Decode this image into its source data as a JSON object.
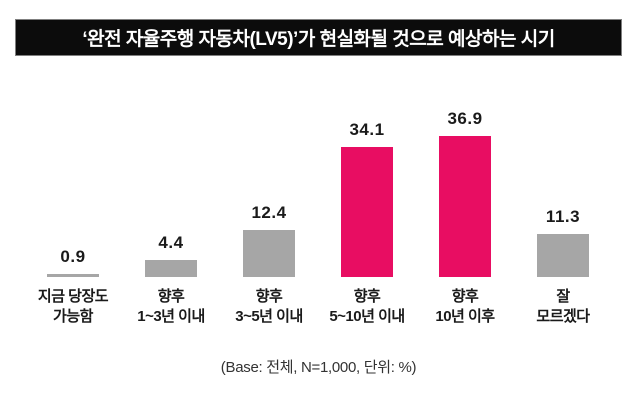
{
  "title": "‘완전 자율주행 자동차(LV5)’가 현실화될 것으로 예상하는 시기",
  "footer": "(Base: 전체, N=1,000, 단위: %)",
  "colors": {
    "highlight_bar": "#e80d62",
    "default_bar": "#a6a6a6",
    "title_background": "#0c0c0c",
    "title_text": "#ffffff",
    "label_text": "#1a1a1a"
  },
  "chart_data": {
    "type": "bar",
    "title": "‘완전 자율주행 자동차(LV5)’가 현실화될 것으로 예상하는 시기",
    "categories": [
      [
        "지금 당장도",
        "가능함"
      ],
      [
        "향후",
        "1~3년 이내"
      ],
      [
        "향후",
        "3~5년 이내"
      ],
      [
        "향후",
        "5~10년 이내"
      ],
      [
        "향후",
        "10년 이후"
      ],
      [
        "잘",
        "모르겠다"
      ]
    ],
    "values": [
      0.9,
      4.4,
      12.4,
      34.1,
      36.9,
      11.3
    ],
    "value_labels": [
      "0.9",
      "4.4",
      "12.4",
      "34.1",
      "36.9",
      "11.3"
    ],
    "highlighted": [
      false,
      false,
      false,
      true,
      true,
      false
    ],
    "xlabel": "",
    "ylabel": "",
    "ylim": [
      0,
      40
    ],
    "grid": false,
    "legend": false,
    "note": "(Base: 전체, N=1,000, 단위: %)"
  }
}
